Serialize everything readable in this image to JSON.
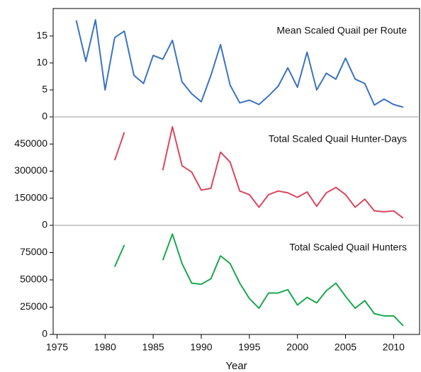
{
  "chart_data": [
    {
      "type": "line",
      "title": "Mean Scaled Quail per Route",
      "x": [
        1977,
        1978,
        1979,
        1980,
        1981,
        1982,
        1983,
        1984,
        1985,
        1986,
        1987,
        1988,
        1989,
        1990,
        1991,
        1992,
        1993,
        1994,
        1995,
        1996,
        1997,
        1998,
        1999,
        2000,
        2001,
        2002,
        2003,
        2004,
        2005,
        2006,
        2007,
        2008,
        2009,
        2010,
        2011
      ],
      "series": [
        {
          "name": "Mean Scaled Quail per Route",
          "color": "#3b73c0",
          "values": [
            17.9,
            10.3,
            18.0,
            5.0,
            14.7,
            15.9,
            7.7,
            6.2,
            11.4,
            10.7,
            14.2,
            6.5,
            4.3,
            2.8,
            7.7,
            13.4,
            5.9,
            2.6,
            3.1,
            2.3,
            3.9,
            5.7,
            9.1,
            5.5,
            12.0,
            5.0,
            8.1,
            7.0,
            10.9,
            7.0,
            6.2,
            2.2,
            3.3,
            2.3,
            1.8
          ]
        }
      ],
      "xlim": [
        1974.6,
        2012.7
      ],
      "ylim": [
        0,
        20.1
      ],
      "yticks": [
        0,
        5,
        10,
        15
      ]
    },
    {
      "type": "line",
      "title": "Total Scaled Quail Hunter-Days",
      "x": [
        1977,
        1978,
        1979,
        1980,
        1981,
        1982,
        1983,
        1984,
        1985,
        1986,
        1987,
        1988,
        1989,
        1990,
        1991,
        1992,
        1993,
        1994,
        1995,
        1996,
        1997,
        1998,
        1999,
        2000,
        2001,
        2002,
        2003,
        2004,
        2005,
        2006,
        2007,
        2008,
        2009,
        2010,
        2011
      ],
      "series": [
        {
          "name": "Total Scaled Quail Hunter-Days",
          "color": "#d9475f",
          "values": [
            null,
            null,
            null,
            null,
            360000,
            515000,
            null,
            null,
            null,
            305000,
            545000,
            330000,
            295000,
            195000,
            205000,
            405000,
            350000,
            190000,
            170000,
            100000,
            170000,
            190000,
            180000,
            155000,
            185000,
            105000,
            180000,
            210000,
            170000,
            100000,
            145000,
            80000,
            75000,
            80000,
            40000
          ]
        }
      ],
      "xlim": [
        1974.6,
        2012.7
      ],
      "ylim": [
        0,
        600000
      ],
      "yticks": [
        0,
        150000,
        300000,
        450000
      ]
    },
    {
      "type": "line",
      "title": "Total Scaled Quail Hunters",
      "xlabel": "Year",
      "x": [
        1977,
        1978,
        1979,
        1980,
        1981,
        1982,
        1983,
        1984,
        1985,
        1986,
        1987,
        1988,
        1989,
        1990,
        1991,
        1992,
        1993,
        1994,
        1995,
        1996,
        1997,
        1998,
        1999,
        2000,
        2001,
        2002,
        2003,
        2004,
        2005,
        2006,
        2007,
        2008,
        2009,
        2010,
        2011
      ],
      "series": [
        {
          "name": "Total Scaled Quail Hunters",
          "color": "#1aa84f",
          "values": [
            null,
            null,
            null,
            null,
            62000,
            82000,
            null,
            null,
            null,
            68000,
            92000,
            65000,
            47000,
            46000,
            51000,
            72000,
            65000,
            47000,
            33000,
            24000,
            38000,
            38000,
            41000,
            27000,
            34000,
            29000,
            40000,
            47000,
            35000,
            24000,
            31000,
            19000,
            17000,
            17000,
            8000
          ]
        }
      ],
      "xlim": [
        1974.6,
        2012.7
      ],
      "ylim": [
        0,
        100000
      ],
      "yticks": [
        0,
        25000,
        50000,
        75000
      ],
      "xticks": [
        1975,
        1980,
        1985,
        1990,
        1995,
        2000,
        2005,
        2010
      ]
    }
  ]
}
